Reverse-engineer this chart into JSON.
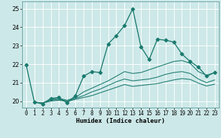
{
  "xlabel": "Humidex (Indice chaleur)",
  "ylabel": "",
  "background_color": "#cde8e8",
  "grid_color": "#b0d8d8",
  "line_color": "#1a7a6e",
  "xlim": [
    -0.5,
    23.5
  ],
  "ylim": [
    19.65,
    25.4
  ],
  "yticks": [
    20,
    21,
    22,
    23,
    24,
    25
  ],
  "xticks": [
    0,
    1,
    2,
    3,
    4,
    5,
    6,
    7,
    8,
    9,
    10,
    11,
    12,
    13,
    14,
    15,
    16,
    17,
    18,
    19,
    20,
    21,
    22,
    23
  ],
  "lines": [
    {
      "x": [
        0,
        1,
        2,
        3,
        4,
        5,
        6,
        7,
        8,
        9,
        10,
        11,
        12,
        13,
        14,
        15,
        16,
        17,
        18,
        19,
        20,
        21,
        22,
        23
      ],
      "y": [
        21.95,
        19.95,
        19.85,
        20.15,
        20.2,
        19.9,
        20.3,
        21.35,
        21.6,
        21.55,
        23.1,
        23.55,
        24.1,
        25.0,
        22.95,
        22.25,
        23.35,
        23.3,
        23.2,
        22.55,
        22.15,
        21.85,
        21.35,
        21.55
      ],
      "marker": "D",
      "markersize": 2.5,
      "linewidth": 1.0
    },
    {
      "x": [
        1,
        2,
        3,
        4,
        5,
        6,
        7,
        8,
        9,
        10,
        11,
        12,
        13,
        14,
        15,
        16,
        17,
        18,
        19,
        20,
        21,
        22,
        23
      ],
      "y": [
        19.95,
        19.9,
        20.1,
        20.15,
        20.05,
        20.2,
        20.5,
        20.7,
        20.9,
        21.1,
        21.35,
        21.6,
        21.5,
        21.55,
        21.7,
        21.85,
        22.0,
        22.15,
        22.2,
        22.05,
        21.6,
        21.4,
        21.55
      ],
      "marker": null,
      "markersize": 0,
      "linewidth": 0.8
    },
    {
      "x": [
        1,
        2,
        3,
        4,
        5,
        6,
        7,
        8,
        9,
        10,
        11,
        12,
        13,
        14,
        15,
        16,
        17,
        18,
        19,
        20,
        21,
        22,
        23
      ],
      "y": [
        19.95,
        19.9,
        20.05,
        20.1,
        20.0,
        20.15,
        20.3,
        20.5,
        20.65,
        20.85,
        21.05,
        21.2,
        21.1,
        21.15,
        21.2,
        21.3,
        21.45,
        21.55,
        21.6,
        21.5,
        21.2,
        21.0,
        21.15
      ],
      "marker": null,
      "markersize": 0,
      "linewidth": 0.8
    },
    {
      "x": [
        1,
        2,
        3,
        4,
        5,
        6,
        7,
        8,
        9,
        10,
        11,
        12,
        13,
        14,
        15,
        16,
        17,
        18,
        19,
        20,
        21,
        22,
        23
      ],
      "y": [
        19.95,
        19.9,
        20.0,
        20.05,
        19.98,
        20.1,
        20.2,
        20.3,
        20.45,
        20.6,
        20.75,
        20.9,
        20.8,
        20.85,
        20.9,
        20.95,
        21.05,
        21.15,
        21.22,
        21.18,
        20.98,
        20.82,
        20.92
      ],
      "marker": null,
      "markersize": 0,
      "linewidth": 0.8
    }
  ]
}
